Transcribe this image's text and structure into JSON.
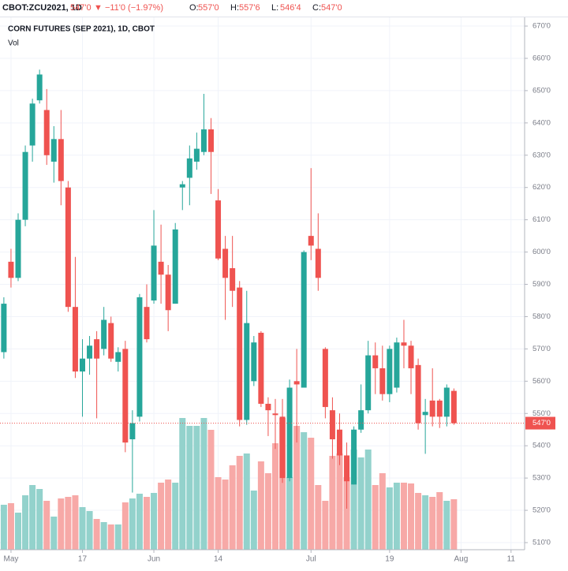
{
  "header": {
    "symbol": "CBOT:ZCU2021, 1D",
    "last": "547'0",
    "change": "▼ −11'0 (−1.97%)",
    "ohlc": [
      {
        "label": "O:",
        "value": "557'0"
      },
      {
        "label": "H:",
        "value": "557'6"
      },
      {
        "label": "L:",
        "value": "546'4"
      },
      {
        "label": "C:",
        "value": "547'0"
      }
    ]
  },
  "chart_data": {
    "type": "candlestick",
    "title": "CORN FUTURES (SEP 2021), 1D, CBOT",
    "volume_label": "Vol",
    "up_color": "#26a69a",
    "down_color": "#ef5350",
    "volume_up_color": "#93d2cc",
    "volume_down_color": "#f7a9a7",
    "open": [
      569,
      597,
      592,
      610,
      633,
      647,
      644,
      628,
      635,
      620,
      583,
      563,
      567,
      573,
      570,
      578,
      566,
      570,
      542,
      549,
      583,
      585,
      597,
      593,
      584,
      620,
      623,
      628,
      631,
      638,
      616,
      601,
      595,
      589,
      548,
      560,
      575,
      553,
      550,
      549,
      530,
      560,
      558,
      605,
      601,
      570,
      551,
      545,
      537,
      528,
      545,
      551,
      568,
      564,
      556,
      558,
      572,
      571,
      565,
      549.5,
      554,
      554,
      549,
      557
    ],
    "high": [
      586,
      601,
      612,
      633,
      647.5,
      656.5,
      650.5,
      639,
      644,
      622,
      598.5,
      573,
      574,
      575.5,
      583,
      580,
      570.5,
      572.5,
      551,
      587,
      590,
      613,
      608.5,
      596,
      609,
      622,
      633,
      637,
      649,
      641.5,
      619.5,
      605,
      605,
      591,
      588,
      574,
      575.5,
      555,
      554.5,
      554.5,
      560.5,
      570,
      600.5,
      626,
      612,
      570.5,
      555,
      550,
      541,
      546,
      559,
      572.5,
      572,
      571,
      571,
      573.5,
      579,
      572.5,
      567,
      554.5,
      564,
      554.5,
      559,
      557.75
    ],
    "low": [
      567,
      589,
      591,
      608,
      628,
      646,
      627,
      621.5,
      614.5,
      581.5,
      561,
      549,
      562,
      548.5,
      568,
      566,
      563,
      538,
      525.5,
      547.5,
      572,
      584,
      584,
      575.5,
      584,
      613,
      614.5,
      625.5,
      630,
      618,
      597.5,
      579,
      583,
      546,
      546.5,
      558.5,
      552,
      543,
      539,
      528.5,
      529,
      541,
      558,
      597.5,
      588,
      548.5,
      536,
      534,
      520.5,
      528,
      544,
      550,
      556,
      554,
      553.5,
      556.5,
      564,
      556,
      545,
      537.5,
      546,
      545.5,
      546,
      546.5
    ],
    "close": [
      584,
      592,
      610,
      631,
      646,
      655,
      630,
      635,
      622,
      583,
      563,
      567,
      571,
      567,
      579,
      567,
      569,
      541,
      547,
      586,
      573,
      602,
      593,
      582,
      607,
      621,
      629,
      632,
      638,
      631,
      598,
      592,
      588,
      548,
      578,
      572,
      553,
      551,
      549.5,
      530,
      558,
      559,
      600,
      602,
      592,
      552,
      542,
      537,
      529,
      545,
      551,
      568,
      564,
      556,
      570,
      572,
      571,
      564,
      547,
      550.5,
      549,
      549,
      558,
      547
    ],
    "volume": [
      57,
      59,
      47,
      69,
      82,
      77,
      62,
      42,
      65,
      67,
      69,
      54,
      49,
      39,
      35,
      32,
      32,
      60,
      65,
      71,
      67,
      72,
      85,
      89,
      85,
      167,
      157,
      157,
      167,
      152,
      92,
      89,
      107,
      119,
      122,
      75,
      112,
      97,
      135,
      167,
      92,
      157,
      149,
      142,
      82,
      62,
      119,
      122,
      92,
      127,
      117,
      127,
      82,
      97,
      79,
      85,
      85,
      84,
      72,
      69,
      67,
      73,
      62,
      64
    ],
    "vlim": [
      0,
      675
    ],
    "xlim": [
      -0.54,
      72.9
    ],
    "xticks": [
      {
        "value": 1,
        "label": "May"
      },
      {
        "value": 11,
        "label": "17"
      },
      {
        "value": 21,
        "label": "Jun"
      },
      {
        "value": 30,
        "label": "14"
      },
      {
        "value": 43,
        "label": "Jul"
      },
      {
        "value": 54,
        "label": "19"
      },
      {
        "value": 64,
        "label": "Aug"
      },
      {
        "value": 71,
        "label": "11"
      }
    ],
    "ylim": [
      507.8,
      672.7
    ],
    "yticks": [
      {
        "value": 510,
        "label": "510'0"
      },
      {
        "value": 520,
        "label": "520'0"
      },
      {
        "value": 530,
        "label": "530'0"
      },
      {
        "value": 540,
        "label": "540'0"
      },
      {
        "value": 550,
        "label": "550'0"
      },
      {
        "value": 560,
        "label": "560'0"
      },
      {
        "value": 570,
        "label": "570'0"
      },
      {
        "value": 580,
        "label": "580'0"
      },
      {
        "value": 590,
        "label": "590'0"
      },
      {
        "value": 600,
        "label": "600'0"
      },
      {
        "value": 610,
        "label": "610'0"
      },
      {
        "value": 620,
        "label": "620'0"
      },
      {
        "value": 630,
        "label": "630'0"
      },
      {
        "value": 640,
        "label": "640'0"
      },
      {
        "value": 650,
        "label": "650'0"
      },
      {
        "value": 660,
        "label": "660'0"
      },
      {
        "value": 670,
        "label": "670'0"
      }
    ],
    "last_price": {
      "value": 547,
      "label": "547'0"
    },
    "grid": true
  }
}
